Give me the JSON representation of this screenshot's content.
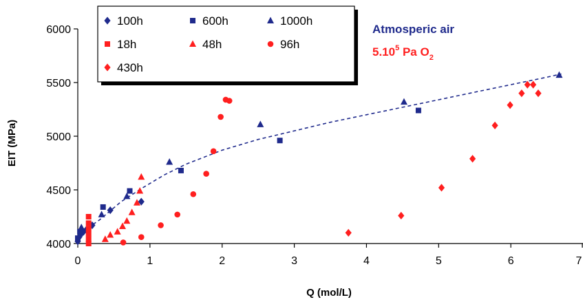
{
  "chart_data": {
    "type": "scatter",
    "xlabel": "Q (mol/L)",
    "ylabel": "EIT (MPa)",
    "xlim": [
      0,
      7
    ],
    "ylim": [
      4000,
      6000
    ],
    "xticks": [
      0,
      1,
      2,
      3,
      4,
      5,
      6,
      7
    ],
    "yticks": [
      4000,
      4500,
      5000,
      5500,
      6000
    ],
    "grid": false,
    "legend_placement": "top-left",
    "legend_columns": 3,
    "annotations": {
      "atmos": "Atmosperic air",
      "o2_prefix": "5.10",
      "o2_exp": "5",
      "o2_mid": " Pa O",
      "o2_sub": "2"
    },
    "colors": {
      "blue": "#1f2a8c",
      "red": "#ff1f1f",
      "curve": "#1f2a8c"
    },
    "series": [
      {
        "name": "100h",
        "marker": "diamond",
        "color": "#1f2a8c",
        "points": [
          [
            0,
            4020
          ],
          [
            0.02,
            4060
          ],
          [
            0.05,
            4090
          ],
          [
            0.08,
            4110
          ],
          [
            0.12,
            4130
          ],
          [
            0.2,
            4170
          ],
          [
            0.45,
            4310
          ],
          [
            0.88,
            4390
          ]
        ]
      },
      {
        "name": "600h",
        "marker": "square",
        "color": "#1f2a8c",
        "points": [
          [
            0,
            4050
          ],
          [
            0.03,
            4110
          ],
          [
            0.35,
            4340
          ],
          [
            0.72,
            4490
          ],
          [
            1.43,
            4680
          ],
          [
            2.8,
            4960
          ],
          [
            4.72,
            5240
          ]
        ]
      },
      {
        "name": "1000h",
        "marker": "triangle",
        "color": "#1f2a8c",
        "points": [
          [
            0.05,
            4150
          ],
          [
            0.33,
            4270
          ],
          [
            0.68,
            4440
          ],
          [
            1.27,
            4760
          ],
          [
            2.53,
            5110
          ],
          [
            4.52,
            5320
          ],
          [
            6.67,
            5570
          ]
        ]
      },
      {
        "name": "18h",
        "marker": "square",
        "color": "#ff1f1f",
        "points": [
          [
            0.15,
            4000
          ],
          [
            0.15,
            4040
          ],
          [
            0.15,
            4090
          ],
          [
            0.15,
            4140
          ],
          [
            0.15,
            4190
          ],
          [
            0.15,
            4250
          ]
        ]
      },
      {
        "name": "48h",
        "marker": "triangle",
        "color": "#ff1f1f",
        "points": [
          [
            0.38,
            4040
          ],
          [
            0.45,
            4080
          ],
          [
            0.55,
            4110
          ],
          [
            0.62,
            4160
          ],
          [
            0.68,
            4210
          ],
          [
            0.75,
            4290
          ],
          [
            0.82,
            4380
          ],
          [
            0.86,
            4490
          ],
          [
            0.88,
            4620
          ]
        ]
      },
      {
        "name": "96h",
        "marker": "circle",
        "color": "#ff1f1f",
        "points": [
          [
            0.63,
            4010
          ],
          [
            0.88,
            4060
          ],
          [
            1.15,
            4170
          ],
          [
            1.38,
            4270
          ],
          [
            1.6,
            4460
          ],
          [
            1.78,
            4650
          ],
          [
            1.88,
            4860
          ],
          [
            1.98,
            5180
          ],
          [
            2.05,
            5340
          ],
          [
            2.1,
            5330
          ]
        ]
      },
      {
        "name": "430h",
        "marker": "diamond",
        "color": "#ff1f1f",
        "points": [
          [
            3.75,
            4100
          ],
          [
            4.48,
            4260
          ],
          [
            5.04,
            4520
          ],
          [
            5.47,
            4790
          ],
          [
            5.78,
            5100
          ],
          [
            5.99,
            5290
          ],
          [
            6.15,
            5400
          ],
          [
            6.23,
            5480
          ],
          [
            6.31,
            5480
          ],
          [
            6.38,
            5400
          ]
        ]
      }
    ],
    "trend_curve": {
      "style": "dashed",
      "points": [
        [
          0,
          4080
        ],
        [
          0.3,
          4220
        ],
        [
          0.6,
          4390
        ],
        [
          0.9,
          4520
        ],
        [
          1.2,
          4640
        ],
        [
          1.5,
          4740
        ],
        [
          2,
          4870
        ],
        [
          2.5,
          4970
        ],
        [
          3,
          5050
        ],
        [
          3.5,
          5130
        ],
        [
          4,
          5200
        ],
        [
          4.5,
          5270
        ],
        [
          5,
          5340
        ],
        [
          5.5,
          5410
        ],
        [
          6,
          5480
        ],
        [
          6.5,
          5550
        ],
        [
          6.7,
          5580
        ]
      ]
    }
  }
}
